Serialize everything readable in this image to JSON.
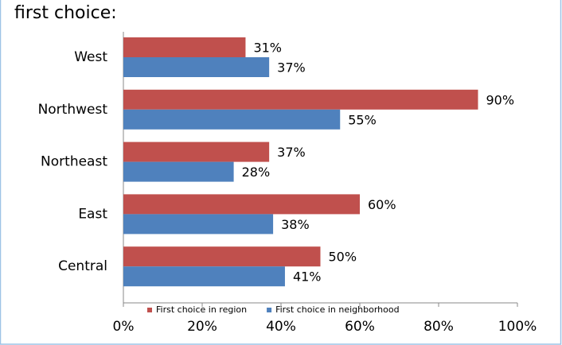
{
  "chart_data": {
    "type": "bar",
    "orientation": "horizontal",
    "title": "first choice:",
    "categories": [
      "West",
      "Northwest",
      "Northeast",
      "East",
      "Central"
    ],
    "series": [
      {
        "name": "First choice in region",
        "color": "#c0504d",
        "values": [
          31,
          90,
          37,
          60,
          50
        ],
        "value_labels": [
          "31%",
          "90%",
          "37%",
          "60%",
          "50%"
        ]
      },
      {
        "name": "First choice in neighborhood",
        "color": "#4f81bd",
        "values": [
          37,
          55,
          28,
          38,
          41
        ],
        "value_labels": [
          "37%",
          "55%",
          "28%",
          "38%",
          "41%"
        ]
      }
    ],
    "xlim": [
      0,
      100
    ],
    "xticks": [
      {
        "value": 0,
        "label": "0%"
      },
      {
        "value": 20,
        "label": "20%"
      },
      {
        "value": 40,
        "label": "40%"
      },
      {
        "value": 60,
        "label": "60%"
      },
      {
        "value": 80,
        "label": "80%"
      },
      {
        "value": 100,
        "label": "100%"
      }
    ],
    "legend": "bottom"
  }
}
